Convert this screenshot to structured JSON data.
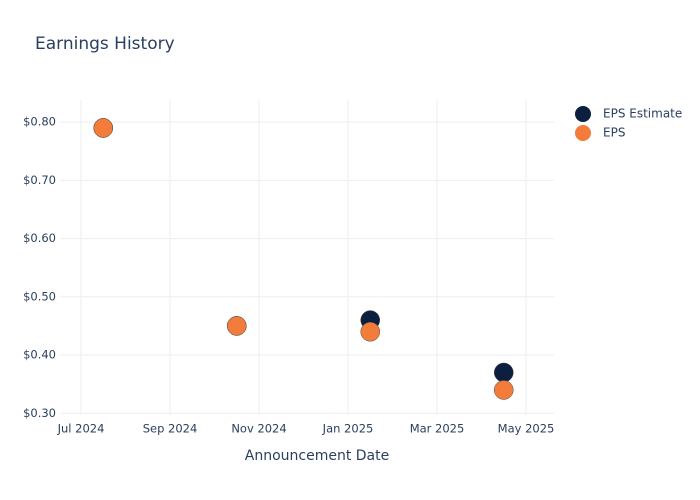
{
  "chart_data": {
    "type": "scatter",
    "title": "Earnings History",
    "x_label": "Announcement Date",
    "x": [
      "2024-07",
      "2024-10",
      "2025-01",
      "2025-04"
    ],
    "series": [
      {
        "name": "EPS Estimate",
        "color": "#0d1f3f",
        "values": [
          0.79,
          0.45,
          0.46,
          0.37
        ]
      },
      {
        "name": "EPS",
        "color": "#f47c3a",
        "values": [
          0.79,
          0.45,
          0.44,
          0.34
        ]
      }
    ],
    "xlim": [
      "2024-06",
      "2025-06"
    ],
    "xticks": [
      {
        "value": "2024-07",
        "label": "Jul 2024"
      },
      {
        "value": "2024-09",
        "label": "Sep 2024"
      },
      {
        "value": "2024-11",
        "label": "Nov 2024"
      },
      {
        "value": "2025-01",
        "label": "Jan 2025"
      },
      {
        "value": "2025-03",
        "label": "Mar 2025"
      },
      {
        "value": "2025-05",
        "label": "May 2025"
      }
    ],
    "ylim": [
      0.297,
      0.838
    ],
    "yticks": [
      {
        "value": 0.3,
        "label": "$0.30"
      },
      {
        "value": 0.4,
        "label": "$0.40"
      },
      {
        "value": 0.5,
        "label": "$0.50"
      },
      {
        "value": 0.6,
        "label": "$0.60"
      },
      {
        "value": 0.7,
        "label": "$0.70"
      },
      {
        "value": 0.8,
        "label": "$0.80"
      }
    ],
    "grid": true,
    "legend": "right"
  }
}
